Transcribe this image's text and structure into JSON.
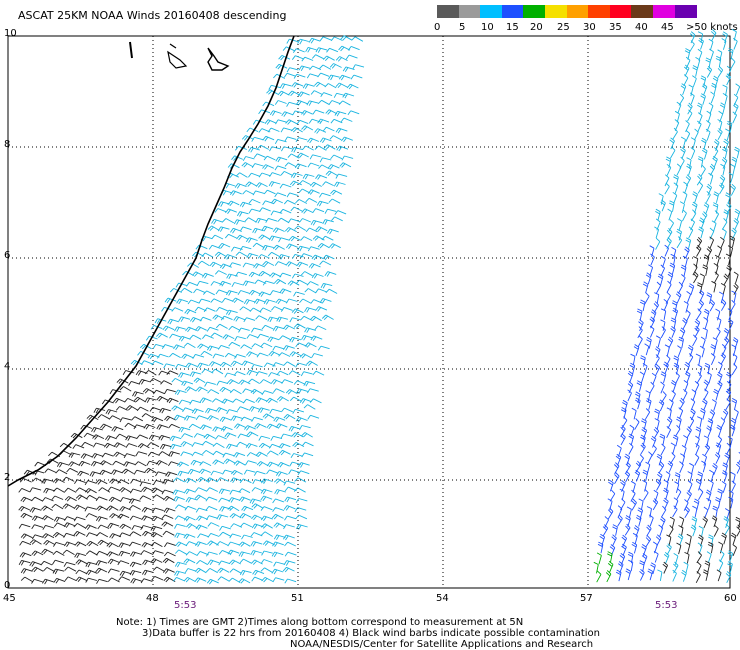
{
  "title": "ASCAT 25KM NOAA Winds 20160408 descending",
  "legend": {
    "labels": [
      "0",
      "5",
      "10",
      "15",
      "20",
      "25",
      "30",
      "35",
      "40",
      "45",
      ">50 knots"
    ],
    "colors": [
      "#5a5a5a",
      "#9a9a9a",
      "#00bfff",
      "#1e50ff",
      "#00b000",
      "#f5e000",
      "#ffa000",
      "#ff4000",
      "#ff0020",
      "#6b3a1a",
      "#e000e0",
      "#6a00b0"
    ]
  },
  "axes": {
    "lat_labels": [
      "10",
      "8",
      "6",
      "4",
      "2",
      "0"
    ],
    "lon_labels": [
      "45",
      "48",
      "51",
      "54",
      "57",
      "60"
    ]
  },
  "pass_times": [
    "5:53",
    "5:53"
  ],
  "notes": {
    "line1": "Note: 1) Times are GMT 2)Times along bottom correspond to measurement at 5N",
    "line2": "3)Data buffer is 22 hrs from 20160408 4) Black wind barbs indicate possible contamination",
    "line3": "NOAA/NESDIS/Center for Satellite Applications and Research"
  }
}
